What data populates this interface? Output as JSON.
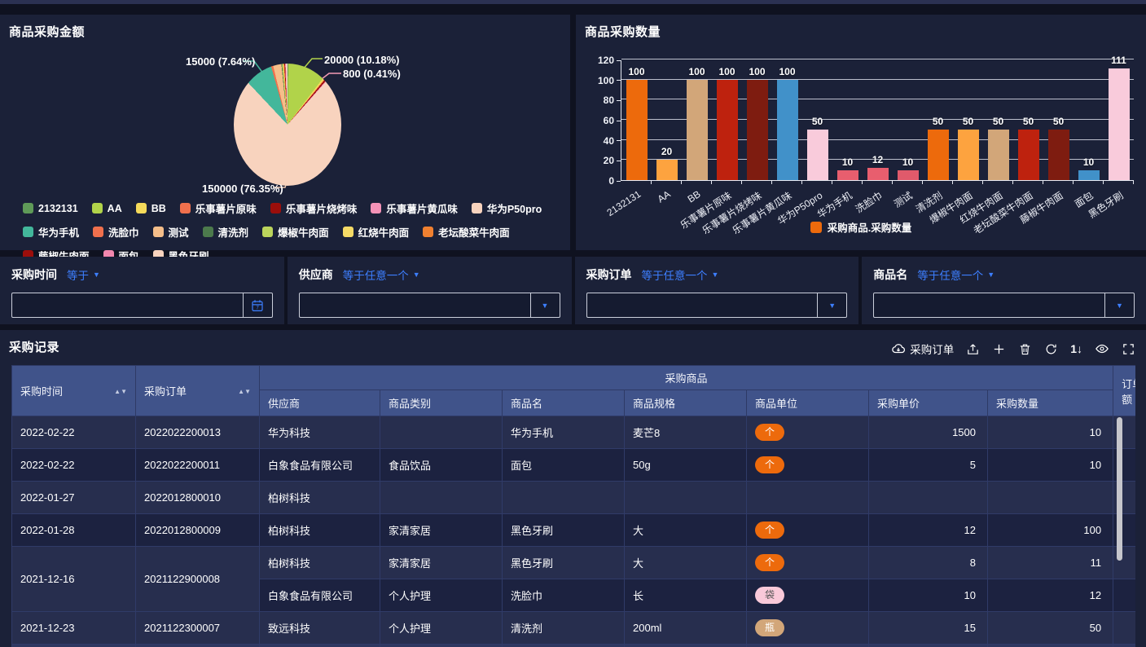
{
  "chart_data": [
    {
      "type": "pie",
      "title": "商品采购金额",
      "slices": [
        {
          "name": "2132131",
          "color": "#5F9A58",
          "pct": 0.2
        },
        {
          "name": "AA",
          "color": "#B1D34A",
          "pct": 10.18,
          "value": 20000
        },
        {
          "name": "BB",
          "color": "#F5DA5A",
          "pct": 0.45
        },
        {
          "name": "乐事薯片原味",
          "color": "#F0704D",
          "pct": 0.2
        },
        {
          "name": "乐事薯片烧烤味",
          "color": "#9B0E0B",
          "pct": 0.41,
          "value": 800
        },
        {
          "name": "乐事薯片黄瓜味",
          "color": "#F492B7",
          "pct": 0.2
        },
        {
          "name": "华为P50pro",
          "color": "#F8D3BE",
          "pct": 76.35,
          "value": 150000
        },
        {
          "name": "华为手机",
          "color": "#43B79B",
          "pct": 7.64,
          "value": 15000
        },
        {
          "name": "洗脸巾",
          "color": "#F0704D",
          "pct": 0.55
        },
        {
          "name": "测试",
          "color": "#F5BE8A",
          "pct": 2.2
        },
        {
          "name": "清洗剂",
          "color": "#4C7A4C",
          "pct": 0.2
        },
        {
          "name": "爆椒牛肉面",
          "color": "#BBD45C",
          "pct": 0.2
        },
        {
          "name": "红烧牛肉面",
          "color": "#F5DA66",
          "pct": 0.2
        },
        {
          "name": "老坛酸菜牛肉面",
          "color": "#F08030",
          "pct": 0.2
        },
        {
          "name": "藤椒牛肉面",
          "color": "#9B0E0B",
          "pct": 0.2
        },
        {
          "name": "面包",
          "color": "#F287AD",
          "pct": 0.2
        },
        {
          "name": "黑色牙刷",
          "color": "#F8D3BE",
          "pct": 0.42
        }
      ],
      "callouts": [
        {
          "text": "15000 (7.64%)",
          "color": "#43B79B"
        },
        {
          "text": "20000 (10.18%)",
          "color": "#B1D34A"
        },
        {
          "text": "800 (0.41%)",
          "color": "#F49BB5"
        },
        {
          "text": "150000 (76.35%)",
          "color": "#E9C6B0"
        }
      ],
      "legend_position": "bottom"
    },
    {
      "type": "bar",
      "title": "商品采购数量",
      "categories": [
        "2132131",
        "AA",
        "BB",
        "乐事薯片原味",
        "乐事薯片烧烤味",
        "乐事薯片黄瓜味",
        "华为P50pro",
        "华为手机",
        "洗脸巾",
        "测试",
        "清洗剂",
        "爆椒牛肉面",
        "红烧牛肉面",
        "老坛酸菜牛肉面",
        "藤椒牛肉面",
        "面包",
        "黑色牙刷"
      ],
      "series": [
        {
          "name": "采购商品.采购数量",
          "values": [
            100,
            20,
            100,
            100,
            100,
            100,
            50,
            10,
            12,
            10,
            50,
            50,
            50,
            50,
            50,
            10,
            111
          ]
        }
      ],
      "bar_colors": [
        "#ED6A0C",
        "#FDA33F",
        "#D2A679",
        "#BE220E",
        "#7E1C10",
        "#4191C9",
        "#F9CBDB",
        "#E85E6E",
        "#E85E6E",
        "#E05A6B",
        "#ED6A0C",
        "#FDA33F",
        "#D2A679",
        "#BE220E",
        "#7E1C10",
        "#4191C9",
        "#F9CBDB"
      ],
      "ylim": [
        0,
        120
      ],
      "yticks": [
        0,
        20,
        40,
        60,
        80,
        100,
        120
      ],
      "grid": true,
      "legend": {
        "label": "采购商品.采购数量",
        "color": "#ED6A0C",
        "position": "bottom"
      }
    }
  ],
  "filters": [
    {
      "label": "采购时间",
      "operator": "等于",
      "value": "",
      "type": "date",
      "icon": "calendar-icon"
    },
    {
      "label": "供应商",
      "operator": "等于任意一个",
      "value": "",
      "type": "select",
      "icon": "chevron-down-icon"
    },
    {
      "label": "采购订单",
      "operator": "等于任意一个",
      "value": "",
      "type": "select",
      "icon": "chevron-down-icon"
    },
    {
      "label": "商品名",
      "operator": "等于任意一个",
      "value": "",
      "type": "select",
      "icon": "chevron-down-icon"
    }
  ],
  "table": {
    "title": "采购记录",
    "toolbar": {
      "order_button_label": "采购订单",
      "icons": [
        "cloud-download-icon",
        "export-icon",
        "add-icon",
        "delete-icon",
        "refresh-icon",
        "sort-icon",
        "view-icon",
        "fullscreen-icon"
      ],
      "sort_icon_glyph": "1↓"
    },
    "header": {
      "col_time": "采购时间",
      "col_order": "采购订单",
      "group": "采购商品",
      "sub_columns": [
        "供应商",
        "商品类别",
        "商品名",
        "商品规格",
        "商品单位",
        "采购单价",
        "采购数量"
      ],
      "col_last": "订单金额"
    },
    "unit_styles": {
      "个": {
        "bg": "#ED6A0C",
        "fg": "#FFFFFF"
      },
      "袋": {
        "bg": "#F9C9D9",
        "fg": "#555555"
      },
      "瓶": {
        "bg": "#D2A679",
        "fg": "#FFFFFF"
      }
    },
    "rows": [
      {
        "date": "2022-02-22",
        "order": "2022022200013",
        "items": [
          {
            "supplier": "华为科技",
            "category": "",
            "name": "华为手机",
            "spec": "麦芒8",
            "unit": "个",
            "price": "1500",
            "qty": "10"
          }
        ]
      },
      {
        "date": "2022-02-22",
        "order": "2022022200011",
        "items": [
          {
            "supplier": "白象食品有限公司",
            "category": "食品饮品",
            "name": "面包",
            "spec": "50g",
            "unit": "个",
            "price": "5",
            "qty": "10"
          }
        ]
      },
      {
        "date": "2022-01-27",
        "order": "2022012800010",
        "items": [
          {
            "supplier": "柏树科技",
            "category": "",
            "name": "",
            "spec": "",
            "unit": "",
            "price": "",
            "qty": ""
          }
        ]
      },
      {
        "date": "2022-01-28",
        "order": "2022012800009",
        "items": [
          {
            "supplier": "柏树科技",
            "category": "家清家居",
            "name": "黑色牙刷",
            "spec": "大",
            "unit": "个",
            "price": "12",
            "qty": "100"
          }
        ]
      },
      {
        "date": "2021-12-16",
        "order": "2021122900008",
        "items": [
          {
            "supplier": "柏树科技",
            "category": "家清家居",
            "name": "黑色牙刷",
            "spec": "大",
            "unit": "个",
            "price": "8",
            "qty": "11"
          },
          {
            "supplier": "白象食品有限公司",
            "category": "个人护理",
            "name": "洗脸巾",
            "spec": "长",
            "unit": "袋",
            "price": "10",
            "qty": "12"
          }
        ]
      },
      {
        "date": "2021-12-23",
        "order": "2021122300007",
        "items": [
          {
            "supplier": "致远科技",
            "category": "个人护理",
            "name": "清洗剂",
            "spec": "200ml",
            "unit": "瓶",
            "price": "15",
            "qty": "50"
          }
        ]
      }
    ]
  }
}
